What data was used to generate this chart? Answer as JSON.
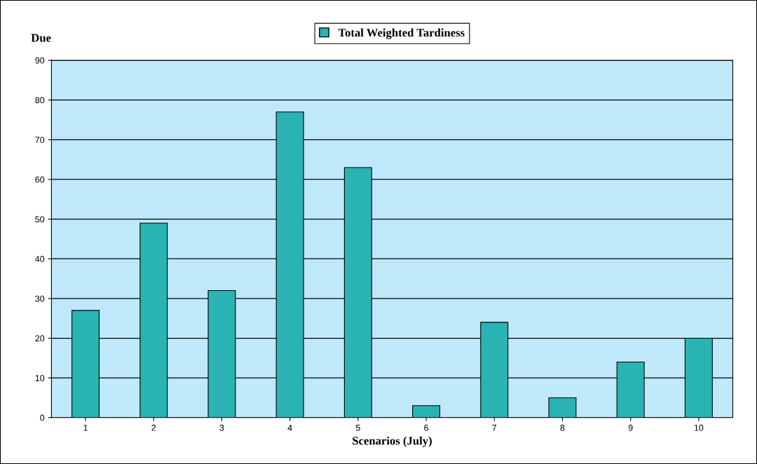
{
  "chart_data": {
    "type": "bar",
    "ylabel": "Due",
    "xlabel": "Scenarios (July)",
    "categories": [
      "1",
      "2",
      "3",
      "4",
      "5",
      "6",
      "7",
      "8",
      "9",
      "10"
    ],
    "series": [
      {
        "name": "Total Weighted Tardiness",
        "color": "#2ab3b3",
        "values": [
          27,
          49,
          32,
          77,
          63,
          3,
          24,
          5,
          14,
          20
        ]
      }
    ],
    "ylim": [
      0,
      90
    ],
    "yticks": [
      0,
      10,
      20,
      30,
      40,
      50,
      60,
      70,
      80,
      90
    ],
    "grid": "y",
    "legend": "top"
  }
}
